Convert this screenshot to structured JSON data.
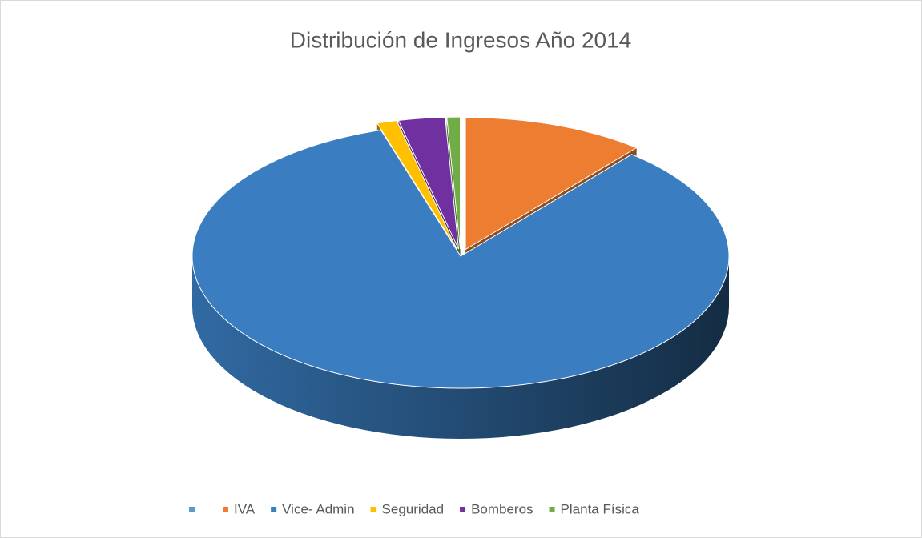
{
  "chart_data": {
    "type": "pie",
    "title": "Distribución de Ingresos Año 2014",
    "categories": [
      null,
      "IVA",
      "Vice- Admin",
      "Seguridad",
      "Bomberos",
      "Planta Física"
    ],
    "values": [
      0,
      11,
      84.2,
      1.2,
      2.8,
      0.8
    ],
    "colors": [
      "#5b9bd5",
      "#ed7d31",
      "#3a7dc0",
      "#ffc000",
      "#7030a0",
      "#70ad47"
    ],
    "legend": "bottom"
  }
}
